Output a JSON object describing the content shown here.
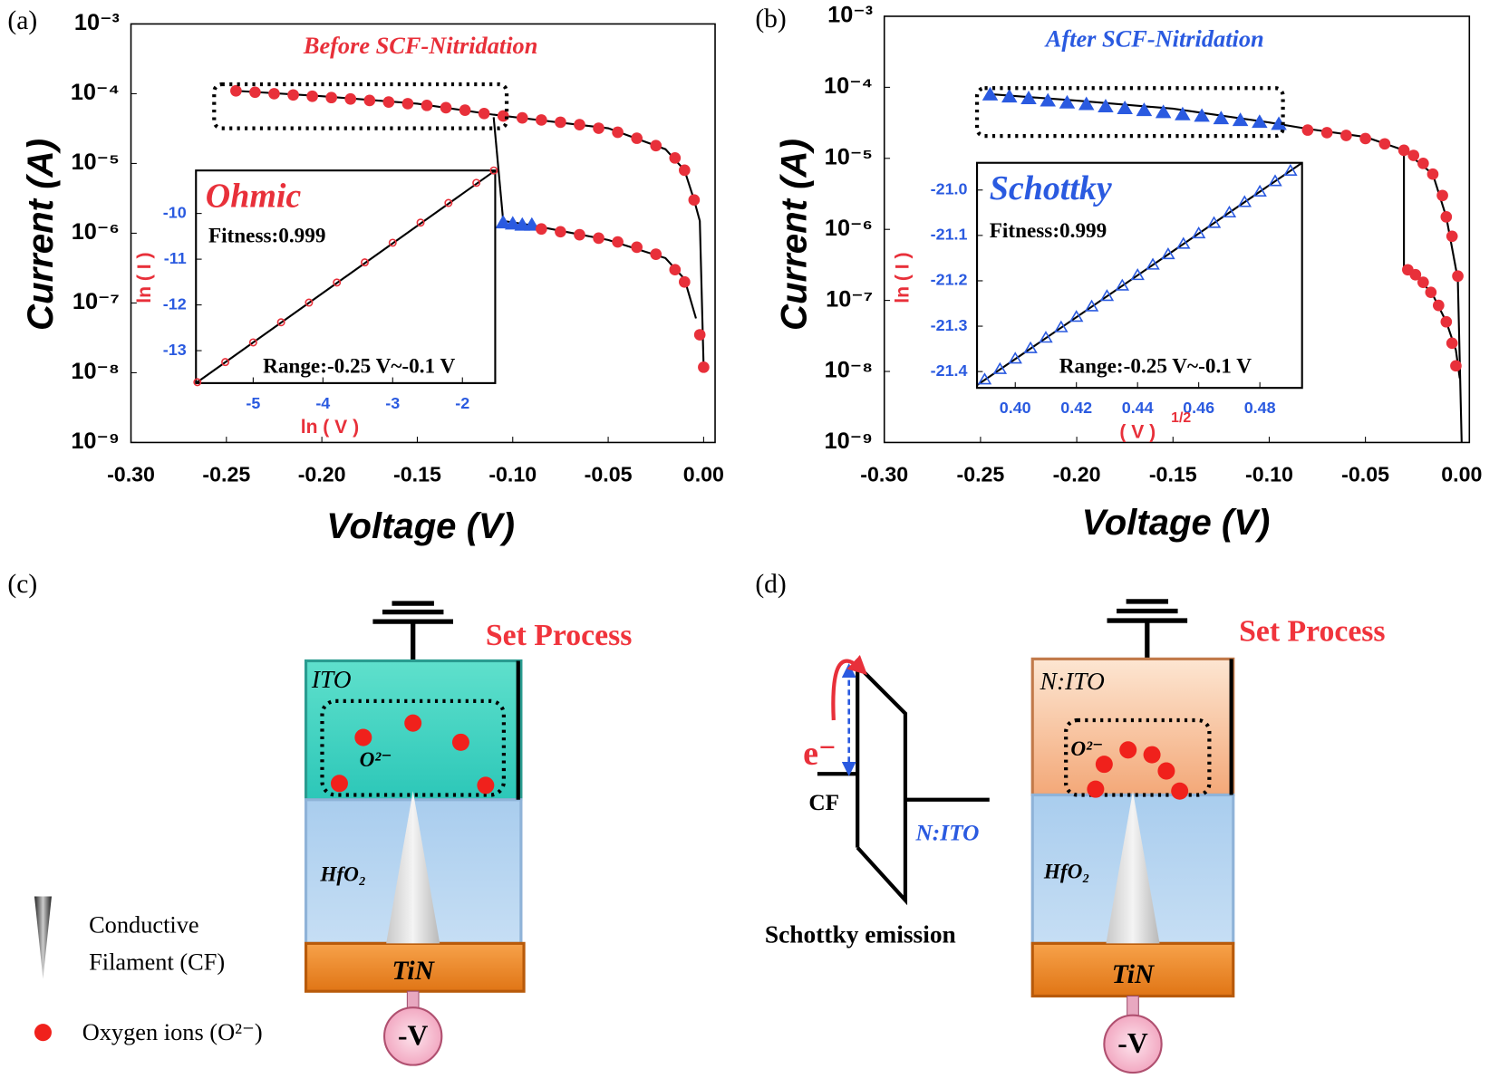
{
  "panels": [
    "(a)",
    "(b)",
    "(c)",
    "(d)"
  ],
  "chart_data": [
    {
      "type": "scatter",
      "title": "Before SCF-Nitridation",
      "title_color": "#e8303a",
      "x_label": "Voltage (V)",
      "y_label": "Current (A)",
      "ylog": true,
      "xlim": [
        -0.3,
        0.006
      ],
      "xticks": [
        {
          "value": -0.3,
          "label": "-0.30"
        },
        {
          "value": -0.25,
          "label": "-0.25"
        },
        {
          "value": -0.2,
          "label": "-0.20"
        },
        {
          "value": -0.15,
          "label": "-0.15"
        },
        {
          "value": -0.1,
          "label": "-0.10"
        },
        {
          "value": -0.05,
          "label": "-0.05"
        },
        {
          "value": 0,
          "label": "0.00"
        }
      ],
      "ylim": [
        1e-09,
        0.001
      ],
      "yticks": [
        {
          "value": 1e-09,
          "label": "10⁻⁹"
        },
        {
          "value": 1e-08,
          "label": "10⁻⁸"
        },
        {
          "value": 1e-07,
          "label": "10⁻⁷"
        },
        {
          "value": 1e-06,
          "label": "10⁻⁶"
        },
        {
          "value": 1e-05,
          "label": "10⁻⁵"
        },
        {
          "value": 0.0001,
          "label": "10⁻⁴"
        },
        {
          "value": 0.001,
          "label": "10⁻³"
        }
      ],
      "series": [
        {
          "marker": "line",
          "color": "#000000",
          "x": [
            -0.245,
            -0.2,
            -0.15,
            -0.11,
            -0.05,
            -0.02,
            -0.01,
            -0.005,
            -0.002,
            0
          ],
          "values": [
            0.00011,
            9.2e-05,
            7.2e-05,
            5e-05,
            3.2e-05,
            1.6e-05,
            8e-06,
            3e-06,
            1.5e-06,
            1.2e-08
          ]
        },
        {
          "marker": "line",
          "color": "#000000",
          "x": [
            -0.11,
            -0.105,
            -0.09,
            -0.05,
            -0.02,
            -0.01,
            -0.004
          ],
          "values": [
            4.6e-05,
            1.5e-06,
            1.3e-06,
            8e-07,
            4.4e-07,
            2.2e-07,
            6e-08
          ]
        },
        {
          "marker": "circle",
          "color": "#e8303a",
          "x": [
            -0.245,
            -0.235,
            -0.225,
            -0.215,
            -0.205,
            -0.195,
            -0.185,
            -0.175,
            -0.165,
            -0.155,
            -0.145,
            -0.135,
            -0.125,
            -0.115,
            -0.105,
            -0.095,
            -0.085,
            -0.075,
            -0.065,
            -0.055,
            -0.045,
            -0.035,
            -0.025,
            -0.015,
            -0.01,
            -0.005
          ],
          "values": [
            0.00011,
            0.000105,
            0.0001,
            9.6e-05,
            9.2e-05,
            8.8e-05,
            8.4e-05,
            8e-05,
            7.6e-05,
            7.2e-05,
            6.8e-05,
            6.3e-05,
            5.8e-05,
            5.2e-05,
            4.8e-05,
            4.5e-05,
            4.2e-05,
            3.9e-05,
            3.6e-05,
            3.2e-05,
            2.8e-05,
            2.3e-05,
            1.8e-05,
            1.2e-05,
            8e-06,
            3e-06
          ]
        },
        {
          "marker": "triangle",
          "color": "#2a5ae0",
          "x": [
            -0.105,
            -0.1,
            -0.095,
            -0.09
          ],
          "values": [
            1.4e-06,
            1.35e-06,
            1.3e-06,
            1.3e-06
          ]
        },
        {
          "marker": "circle",
          "color": "#e8303a",
          "x": [
            -0.085,
            -0.075,
            -0.065,
            -0.055,
            -0.045,
            -0.035,
            -0.025,
            -0.015,
            -0.01,
            -0.002,
            0
          ],
          "values": [
            1.15e-06,
            1.05e-06,
            9.5e-07,
            8.5e-07,
            7.5e-07,
            6.3e-07,
            5e-07,
            3e-07,
            2e-07,
            3.5e-08,
            1.2e-08
          ]
        }
      ]
    },
    {
      "type": "scatter",
      "x_label": "ln ( V )",
      "y_label": "ln ( I )",
      "label_color": "#e8303a",
      "tick_color": "#2a5ae0",
      "annotations": [
        "Ohmic",
        "Fitness:0.999",
        "Range:-0.25 V~-0.1 V"
      ],
      "xlim": [
        -5.82,
        -1.53
      ],
      "xticks": [
        -5,
        -4,
        -3,
        -2
      ],
      "ylim": [
        -13.71,
        -9.06
      ],
      "yticks": [
        -10,
        -11,
        -12,
        -13
      ],
      "series": [
        {
          "marker": "line",
          "color": "#000000",
          "x": [
            -5.82,
            -1.53
          ],
          "values": [
            -13.71,
            -9.06
          ]
        },
        {
          "marker": "open-circle",
          "color": "#e8303a",
          "x": [
            -5.8,
            -5.4,
            -5.0,
            -4.6,
            -4.2,
            -3.8,
            -3.4,
            -3.0,
            -2.6,
            -2.2,
            -1.8,
            -1.55
          ],
          "values": [
            -13.69,
            -13.25,
            -12.82,
            -12.38,
            -11.95,
            -11.51,
            -11.07,
            -10.64,
            -10.2,
            -9.77,
            -9.33,
            -9.06
          ]
        }
      ]
    },
    {
      "type": "scatter",
      "title": "After SCF-Nitridation",
      "title_color": "#2a5ae0",
      "x_label": "Voltage (V)",
      "y_label": "Current (A)",
      "ylog": true,
      "xlim": [
        -0.3,
        0.004
      ],
      "xticks": [
        {
          "value": -0.3,
          "label": "-0.30"
        },
        {
          "value": -0.25,
          "label": "-0.25"
        },
        {
          "value": -0.2,
          "label": "-0.20"
        },
        {
          "value": -0.15,
          "label": "-0.15"
        },
        {
          "value": -0.1,
          "label": "-0.10"
        },
        {
          "value": -0.05,
          "label": "-0.05"
        },
        {
          "value": 0,
          "label": "0.00"
        }
      ],
      "ylim": [
        1e-09,
        0.001
      ],
      "yticks": [
        {
          "value": 1e-09,
          "label": "10⁻⁹"
        },
        {
          "value": 1e-08,
          "label": "10⁻⁸"
        },
        {
          "value": 1e-07,
          "label": "10⁻⁷"
        },
        {
          "value": 1e-06,
          "label": "10⁻⁶"
        },
        {
          "value": 1e-05,
          "label": "10⁻⁵"
        },
        {
          "value": 0.0001,
          "label": "10⁻⁴"
        },
        {
          "value": 0.001,
          "label": "10⁻³"
        }
      ],
      "series": [
        {
          "marker": "line",
          "color": "#000000",
          "x": [
            -0.245,
            -0.2,
            -0.15,
            -0.1,
            -0.08,
            -0.05,
            -0.03,
            -0.015,
            -0.008,
            -0.002,
            0
          ],
          "values": [
            8e-05,
            6.5e-05,
            5e-05,
            3.2e-05,
            2.6e-05,
            2e-05,
            1.3e-05,
            6e-06,
            1.5e-06,
            2e-07,
            1e-09
          ]
        },
        {
          "marker": "line",
          "color": "#000000",
          "x": [
            -0.03,
            -0.03,
            -0.025,
            -0.015,
            -0.008,
            -0.003,
            -0.001
          ],
          "values": [
            1.3e-05,
            3e-07,
            2.5e-07,
            1.2e-07,
            5e-08,
            2e-08,
            8e-09
          ]
        },
        {
          "marker": "triangle",
          "color": "#2a5ae0",
          "x": [
            -0.245,
            -0.235,
            -0.225,
            -0.215,
            -0.205,
            -0.195,
            -0.185,
            -0.175,
            -0.165,
            -0.155,
            -0.145,
            -0.135,
            -0.125,
            -0.115,
            -0.105,
            -0.095
          ],
          "values": [
            7.8e-05,
            7.3e-05,
            6.9e-05,
            6.4e-05,
            6e-05,
            5.7e-05,
            5.3e-05,
            5e-05,
            4.7e-05,
            4.4e-05,
            4.1e-05,
            3.9e-05,
            3.6e-05,
            3.4e-05,
            3.2e-05,
            3e-05
          ]
        },
        {
          "marker": "circle",
          "color": "#e8303a",
          "x": [
            -0.08,
            -0.07,
            -0.06,
            -0.05,
            -0.04,
            -0.03,
            -0.025,
            -0.02,
            -0.015,
            -0.01,
            -0.008,
            -0.005,
            -0.002
          ],
          "values": [
            2.5e-05,
            2.3e-05,
            2.1e-05,
            1.9e-05,
            1.6e-05,
            1.3e-05,
            1.1e-05,
            8.5e-06,
            6e-06,
            3e-06,
            1.5e-06,
            8e-07,
            2.2e-07
          ]
        },
        {
          "marker": "circle",
          "color": "#e8303a",
          "x": [
            -0.028,
            -0.024,
            -0.02,
            -0.016,
            -0.012,
            -0.008,
            -0.005,
            -0.003
          ],
          "values": [
            2.7e-07,
            2.3e-07,
            1.8e-07,
            1.3e-07,
            8.5e-08,
            5e-08,
            2.5e-08,
            1.2e-08
          ]
        }
      ]
    },
    {
      "type": "scatter",
      "x_label": "( V )",
      "x_label_exponent": "1/2",
      "y_label": "ln ( I )",
      "label_color": "#e8303a",
      "tick_color": "#2a5ae0",
      "annotations": [
        "Schottky",
        "Fitness:0.999",
        "Range:-0.25 V~-0.1 V"
      ],
      "xlim": [
        0.3875,
        0.4938
      ],
      "xticks": [
        {
          "value": 0.4,
          "label": "0.40"
        },
        {
          "value": 0.42,
          "label": "0.42"
        },
        {
          "value": 0.44,
          "label": "0.44"
        },
        {
          "value": 0.46,
          "label": "0.46"
        },
        {
          "value": 0.48,
          "label": "0.48"
        }
      ],
      "ylim": [
        -21.436,
        -20.94
      ],
      "yticks": [
        {
          "value": -21,
          "label": "-21.0"
        },
        -21.1,
        -21.2,
        -21.3,
        -21.4
      ],
      "series": [
        {
          "marker": "line",
          "color": "#000000",
          "x": [
            0.3875,
            0.4938
          ],
          "values": [
            -21.43,
            -20.94
          ]
        },
        {
          "marker": "open-triangle",
          "color": "#2a5ae0",
          "x": [
            0.39,
            0.395,
            0.4,
            0.405,
            0.41,
            0.415,
            0.42,
            0.425,
            0.43,
            0.435,
            0.44,
            0.445,
            0.45,
            0.455,
            0.46,
            0.465,
            0.47,
            0.475,
            0.48,
            0.485,
            0.49
          ],
          "values": [
            -21.418,
            -21.395,
            -21.372,
            -21.349,
            -21.326,
            -21.303,
            -21.28,
            -21.257,
            -21.234,
            -21.211,
            -21.188,
            -21.165,
            -21.142,
            -21.119,
            -21.096,
            -21.073,
            -21.05,
            -21.027,
            -21.004,
            -20.981,
            -20.958
          ]
        }
      ]
    }
  ],
  "diagram_c": {
    "process": "Set Process",
    "top": "ITO",
    "ion": "O²⁻",
    "middle": "HfO₂",
    "bottom": "TiN",
    "source": "-V",
    "legend": {
      "filament_1": "Conductive",
      "filament_2": "Filament (CF)",
      "ions": "Oxygen ions (O²⁻)"
    }
  },
  "diagram_d": {
    "process": "Set Process",
    "top": "N:ITO",
    "ion": "O²⁻",
    "middle": "HfO₂",
    "bottom": "TiN",
    "source": "-V",
    "band": {
      "electron": "e⁻",
      "left": "CF",
      "right": "N:ITO",
      "caption": "Schottky emission"
    }
  }
}
